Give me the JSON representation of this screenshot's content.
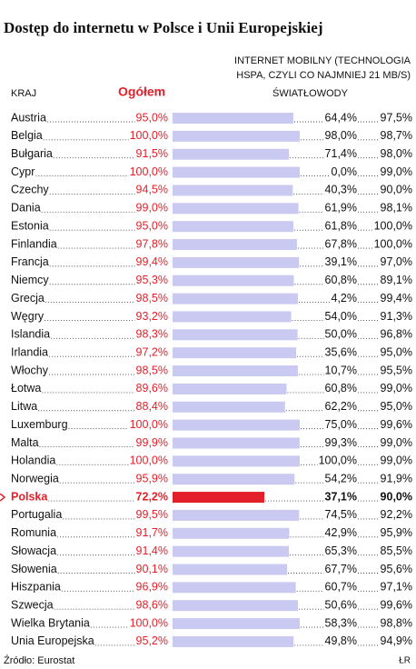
{
  "chart_data": {
    "type": "bar",
    "orientation": "horizontal",
    "title": "Dostęp do internetu w Polsce i Unii Europejskiej",
    "category_header": "KRAJ",
    "categories": [
      "Austria",
      "Belgia",
      "Bułgaria",
      "Cypr",
      "Czechy",
      "Dania",
      "Estonia",
      "Finlandia",
      "Francja",
      "Niemcy",
      "Grecja",
      "Węgry",
      "Islandia",
      "Irlandia",
      "Włochy",
      "Łotwa",
      "Litwa",
      "Luxemburg",
      "Malta",
      "Holandia",
      "Norwegia",
      "Polska",
      "Portugalia",
      "Romunia",
      "Słowacja",
      "Słowenia",
      "Hiszpania",
      "Szwecja",
      "Wielka Brytania",
      "Unia Europejska"
    ],
    "series": [
      {
        "name": "Ogółem",
        "color": "#c9c9f2",
        "label_color": "#e3202a",
        "values": [
          95.0,
          100.0,
          91.5,
          100.0,
          94.5,
          99.0,
          95.0,
          97.8,
          99.4,
          95.3,
          98.5,
          93.2,
          98.3,
          97.2,
          98.5,
          89.6,
          88.4,
          100.0,
          99.9,
          100.0,
          95.9,
          72.2,
          99.5,
          91.7,
          91.4,
          90.1,
          96.9,
          98.6,
          100.0,
          95.2
        ],
        "value_labels": [
          "95,0%",
          "100,0%",
          "91,5%",
          "100,0%",
          "94,5%",
          "99,0%",
          "95,0%",
          "97,8%",
          "99,4%",
          "95,3%",
          "98,5%",
          "93,2%",
          "98,3%",
          "97,2%",
          "98,5%",
          "89,6%",
          "88,4%",
          "100,0%",
          "99,9%",
          "100,0%",
          "95,9%",
          "72,2%",
          "99,5%",
          "91,7%",
          "91,4%",
          "90,1%",
          "96,9%",
          "98,6%",
          "100,0%",
          "95,2%"
        ]
      }
    ],
    "columns": [
      {
        "name": "ŚWIATŁOWODY",
        "values": [
          64.4,
          98.0,
          71.4,
          0.0,
          40.3,
          61.9,
          61.8,
          67.8,
          39.1,
          60.8,
          4.2,
          54.0,
          50.0,
          35.6,
          10.7,
          60.8,
          62.2,
          75.0,
          99.3,
          100.0,
          54.2,
          37.1,
          74.5,
          42.9,
          65.3,
          67.7,
          60.7,
          50.6,
          58.3,
          49.8
        ],
        "value_labels": [
          "64,4%",
          "98,0%",
          "71,4%",
          "0,0%",
          "40,3%",
          "61,9%",
          "61,8%",
          "67,8%",
          "39,1%",
          "60,8%",
          "4,2%",
          "54,0%",
          "50,0%",
          "35,6%",
          "10,7%",
          "60,8%",
          "62,2%",
          "75,0%",
          "99,3%",
          "100,0%",
          "54,2%",
          "37,1%",
          "74,5%",
          "42,9%",
          "65,3%",
          "67,7%",
          "60,7%",
          "50,6%",
          "58,3%",
          "49,8%"
        ]
      },
      {
        "name": [
          "INTERNET MOBILNY (TECHNOLOGIA",
          "HSPA, CZYLI CO NAJMNIEJ 21 MB/S)"
        ],
        "values": [
          97.5,
          98.7,
          98.0,
          99.0,
          90.0,
          98.1,
          100.0,
          100.0,
          97.0,
          89.1,
          99.4,
          91.3,
          96.8,
          95.0,
          95.5,
          99.0,
          95.0,
          99.6,
          99.0,
          99.0,
          91.9,
          90.0,
          92.2,
          95.9,
          85.5,
          95.6,
          97.1,
          99.6,
          98.8,
          94.9
        ],
        "value_labels": [
          "97,5%",
          "98,7%",
          "98,0%",
          "99,0%",
          "90,0%",
          "98,1%",
          "100,0%",
          "100,0%",
          "97,0%",
          "89,1%",
          "99,4%",
          "91,3%",
          "96,8%",
          "95,0%",
          "95,5%",
          "99,0%",
          "95,0%",
          "99,6%",
          "99,0%",
          "99,0%",
          "91,9%",
          "90,0%",
          "92,2%",
          "95,9%",
          "85,5%",
          "95,6%",
          "97,1%",
          "99,6%",
          "98,8%",
          "94,9%"
        ]
      }
    ],
    "xlim": [
      0,
      100
    ],
    "highlight_category": "Polska",
    "highlight_color": "#e3202a",
    "source": "Źródło: Eurostat",
    "credit": "ŁR"
  }
}
